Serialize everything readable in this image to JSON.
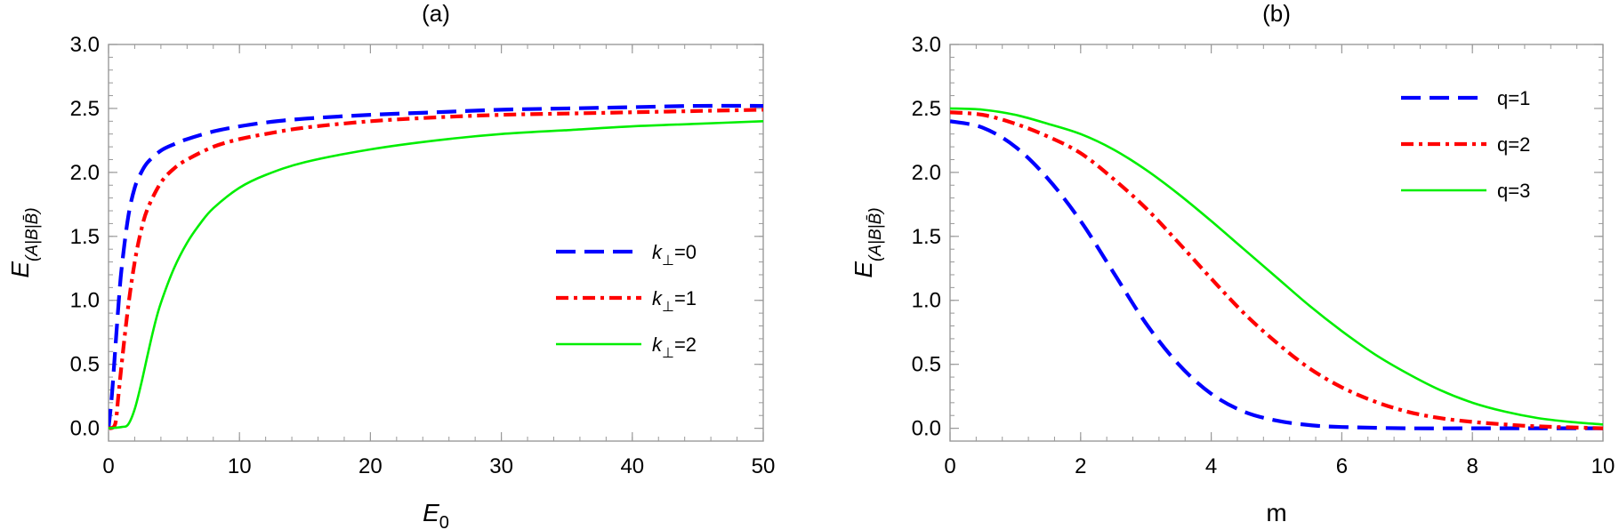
{
  "chart_data": [
    {
      "type": "line",
      "title": "(a)",
      "xlabel": "E",
      "xlabel_sub": "0",
      "ylabel": "E",
      "ylabel_sub": "(A|B|B̄)",
      "xlim": [
        0,
        50
      ],
      "ylim": [
        -0.1,
        3.0
      ],
      "xticks": [
        0,
        10,
        20,
        30,
        40,
        50
      ],
      "yticks": [
        0.0,
        0.5,
        1.0,
        1.5,
        2.0,
        2.5,
        3.0
      ],
      "xtick_labels": [
        "0",
        "10",
        "20",
        "30",
        "40",
        "50"
      ],
      "ytick_labels": [
        "0.0",
        "0.5",
        "1.0",
        "1.5",
        "2.0",
        "2.5",
        "3.0"
      ],
      "grid": false,
      "legend_position": "center-right",
      "series": [
        {
          "name": "k⊥=0",
          "name_parts": {
            "base": "k",
            "sub": "⊥",
            "suffix": "=0"
          },
          "color": "#0000ff",
          "style": "dashed",
          "x": [
            0,
            0.25,
            0.5,
            0.75,
            1.0,
            1.5,
            2.0,
            2.5,
            3.0,
            4.0,
            5.0,
            6.0,
            8.0,
            10,
            12,
            15,
            20,
            25,
            30,
            35,
            40,
            45,
            50
          ],
          "y": [
            0.0,
            0.25,
            0.6,
            0.95,
            1.25,
            1.65,
            1.88,
            2.0,
            2.08,
            2.17,
            2.22,
            2.26,
            2.32,
            2.36,
            2.39,
            2.42,
            2.45,
            2.47,
            2.49,
            2.5,
            2.51,
            2.52,
            2.52
          ]
        },
        {
          "name": "k⊥=1",
          "name_parts": {
            "base": "k",
            "sub": "⊥",
            "suffix": "=1"
          },
          "color": "#ff0000",
          "style": "dashdot",
          "x": [
            0,
            0.5,
            0.75,
            1.0,
            1.5,
            2.0,
            2.5,
            3.0,
            4.0,
            5.0,
            6.0,
            8.0,
            10,
            12,
            15,
            20,
            25,
            30,
            35,
            40,
            45,
            50
          ],
          "y": [
            0.0,
            0.03,
            0.25,
            0.5,
            0.95,
            1.3,
            1.55,
            1.72,
            1.92,
            2.03,
            2.1,
            2.2,
            2.26,
            2.3,
            2.35,
            2.4,
            2.43,
            2.45,
            2.46,
            2.47,
            2.48,
            2.49
          ]
        },
        {
          "name": "k⊥=2",
          "name_parts": {
            "base": "k",
            "sub": "⊥",
            "suffix": "=2"
          },
          "color": "#00ee00",
          "style": "solid",
          "x": [
            0,
            1.0,
            1.5,
            2.0,
            2.5,
            3.0,
            3.5,
            4.0,
            5.0,
            6.0,
            7.0,
            8.0,
            10,
            12,
            15,
            20,
            25,
            30,
            35,
            40,
            45,
            50
          ],
          "y": [
            0.0,
            0.01,
            0.03,
            0.15,
            0.35,
            0.58,
            0.8,
            0.98,
            1.25,
            1.45,
            1.6,
            1.72,
            1.88,
            1.98,
            2.08,
            2.18,
            2.25,
            2.3,
            2.33,
            2.36,
            2.38,
            2.4
          ]
        }
      ]
    },
    {
      "type": "line",
      "title": "(b)",
      "xlabel": "m",
      "xlabel_sub": "",
      "ylabel": "E",
      "ylabel_sub": "(A|B|B̄)",
      "xlim": [
        0,
        10
      ],
      "ylim": [
        -0.1,
        3.0
      ],
      "xticks": [
        0,
        2,
        4,
        6,
        8,
        10
      ],
      "yticks": [
        0.0,
        0.5,
        1.0,
        1.5,
        2.0,
        2.5,
        3.0
      ],
      "xtick_labels": [
        "0",
        "2",
        "4",
        "6",
        "8",
        "10"
      ],
      "ytick_labels": [
        "0.0",
        "0.5",
        "1.0",
        "1.5",
        "2.0",
        "2.5",
        "3.0"
      ],
      "grid": false,
      "legend_position": "top-right",
      "series": [
        {
          "name": "q=1",
          "color": "#0000ff",
          "style": "dashed",
          "x": [
            0,
            0.5,
            1.0,
            1.5,
            2.0,
            2.5,
            3.0,
            3.5,
            4.0,
            4.5,
            5.0,
            5.5,
            6.0,
            7.0,
            8.0,
            9.0,
            10
          ],
          "y": [
            2.4,
            2.35,
            2.2,
            1.95,
            1.62,
            1.22,
            0.82,
            0.5,
            0.27,
            0.13,
            0.06,
            0.025,
            0.01,
            0.0,
            0.0,
            0.0,
            0.0
          ]
        },
        {
          "name": "q=2",
          "color": "#ff0000",
          "style": "dashdot",
          "x": [
            0,
            0.5,
            1.0,
            1.5,
            2.0,
            2.5,
            3.0,
            3.5,
            4.0,
            4.5,
            5.0,
            5.5,
            6.0,
            6.5,
            7.0,
            7.5,
            8.0,
            8.5,
            9.0,
            10
          ],
          "y": [
            2.47,
            2.45,
            2.38,
            2.28,
            2.15,
            1.95,
            1.72,
            1.45,
            1.17,
            0.9,
            0.67,
            0.47,
            0.32,
            0.21,
            0.13,
            0.08,
            0.05,
            0.03,
            0.015,
            0.0
          ]
        },
        {
          "name": "q=3",
          "color": "#00ee00",
          "style": "solid",
          "x": [
            0,
            0.5,
            1.0,
            1.5,
            2.0,
            2.5,
            3.0,
            3.5,
            4.0,
            4.5,
            5.0,
            5.5,
            6.0,
            6.5,
            7.0,
            7.5,
            8.0,
            8.5,
            9.0,
            9.5,
            10
          ],
          "y": [
            2.5,
            2.49,
            2.45,
            2.38,
            2.3,
            2.18,
            2.02,
            1.83,
            1.62,
            1.4,
            1.18,
            0.96,
            0.76,
            0.58,
            0.43,
            0.3,
            0.2,
            0.13,
            0.08,
            0.05,
            0.03
          ]
        }
      ]
    }
  ]
}
